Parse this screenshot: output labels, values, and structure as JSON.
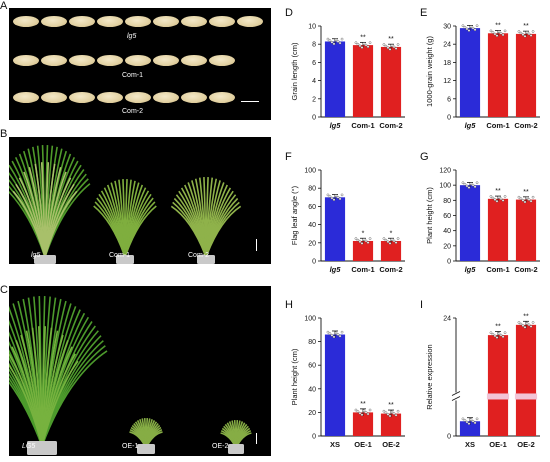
{
  "panels": {
    "A": {
      "letter": "A",
      "labels": [
        "lg5",
        "Com-1",
        "Com-2"
      ]
    },
    "B": {
      "letter": "B",
      "labels": [
        "lg5",
        "Com-1",
        "Com-2"
      ]
    },
    "C": {
      "letter": "C",
      "labels": [
        "LG5",
        "OE-1",
        "OE-2"
      ]
    }
  },
  "chart_data": [
    {
      "id": "D",
      "letter": "D",
      "type": "bar",
      "ylabel": "Grain length (cm)",
      "categories": [
        "lg5",
        "Com-1",
        "Com-2"
      ],
      "values": [
        8.3,
        7.9,
        7.7
      ],
      "ylim": [
        0,
        10
      ],
      "yticks": [
        0,
        2,
        4,
        6,
        8,
        10
      ],
      "signif": [
        "",
        "**",
        "**"
      ],
      "colors": [
        "#2b2bd8",
        "#e02020",
        "#e02020"
      ],
      "italic_first": true
    },
    {
      "id": "E",
      "letter": "E",
      "type": "bar",
      "ylabel": "1000-grain weight (g)",
      "categories": [
        "lg5",
        "Com-1",
        "Com-2"
      ],
      "values": [
        29.3,
        27.6,
        27.4
      ],
      "ylim": [
        0,
        30
      ],
      "yticks": [
        0,
        6,
        12,
        18,
        24,
        30
      ],
      "signif": [
        "",
        "**",
        "**"
      ],
      "colors": [
        "#2b2bd8",
        "#e02020",
        "#e02020"
      ],
      "italic_first": true
    },
    {
      "id": "F",
      "letter": "F",
      "type": "bar",
      "ylabel": "Flag leaf angle (°)",
      "categories": [
        "lg5",
        "Com-1",
        "Com-2"
      ],
      "values": [
        70,
        22,
        22
      ],
      "ylim": [
        0,
        100
      ],
      "yticks": [
        0,
        20,
        40,
        60,
        80,
        100
      ],
      "signif": [
        "",
        "*",
        "*"
      ],
      "colors": [
        "#2b2bd8",
        "#e02020",
        "#e02020"
      ],
      "italic_first": true
    },
    {
      "id": "G",
      "letter": "G",
      "type": "bar",
      "ylabel": "Plant height (cm)",
      "categories": [
        "lg5",
        "Com-1",
        "Com-2"
      ],
      "values": [
        100,
        82,
        81
      ],
      "ylim": [
        0,
        120
      ],
      "yticks": [
        0,
        20,
        40,
        60,
        80,
        100,
        120
      ],
      "signif": [
        "",
        "**",
        "**"
      ],
      "colors": [
        "#2b2bd8",
        "#e02020",
        "#e02020"
      ],
      "italic_first": true
    },
    {
      "id": "H",
      "letter": "H",
      "type": "bar",
      "ylabel": "Plant height (cm)",
      "categories": [
        "XS",
        "OE-1",
        "OE-2"
      ],
      "values": [
        86,
        20,
        19
      ],
      "ylim": [
        0,
        100
      ],
      "yticks": [
        0,
        20,
        40,
        60,
        80,
        100
      ],
      "signif": [
        "",
        "**",
        "**"
      ],
      "colors": [
        "#2b2bd8",
        "#e02020",
        "#e02020"
      ],
      "italic_first": false
    },
    {
      "id": "I",
      "letter": "I",
      "type": "bar",
      "ylabel": "Relative expression",
      "categories": [
        "XS",
        "OE-1",
        "OE-2"
      ],
      "values": [
        1,
        23.5,
        23.8
      ],
      "ylim": [
        0,
        24
      ],
      "yticks": [
        0,
        24
      ],
      "axis_break": true,
      "signif": [
        "",
        "**",
        "**"
      ],
      "colors": [
        "#2b2bd8",
        "#e02020",
        "#e02020"
      ],
      "italic_first": false
    }
  ]
}
